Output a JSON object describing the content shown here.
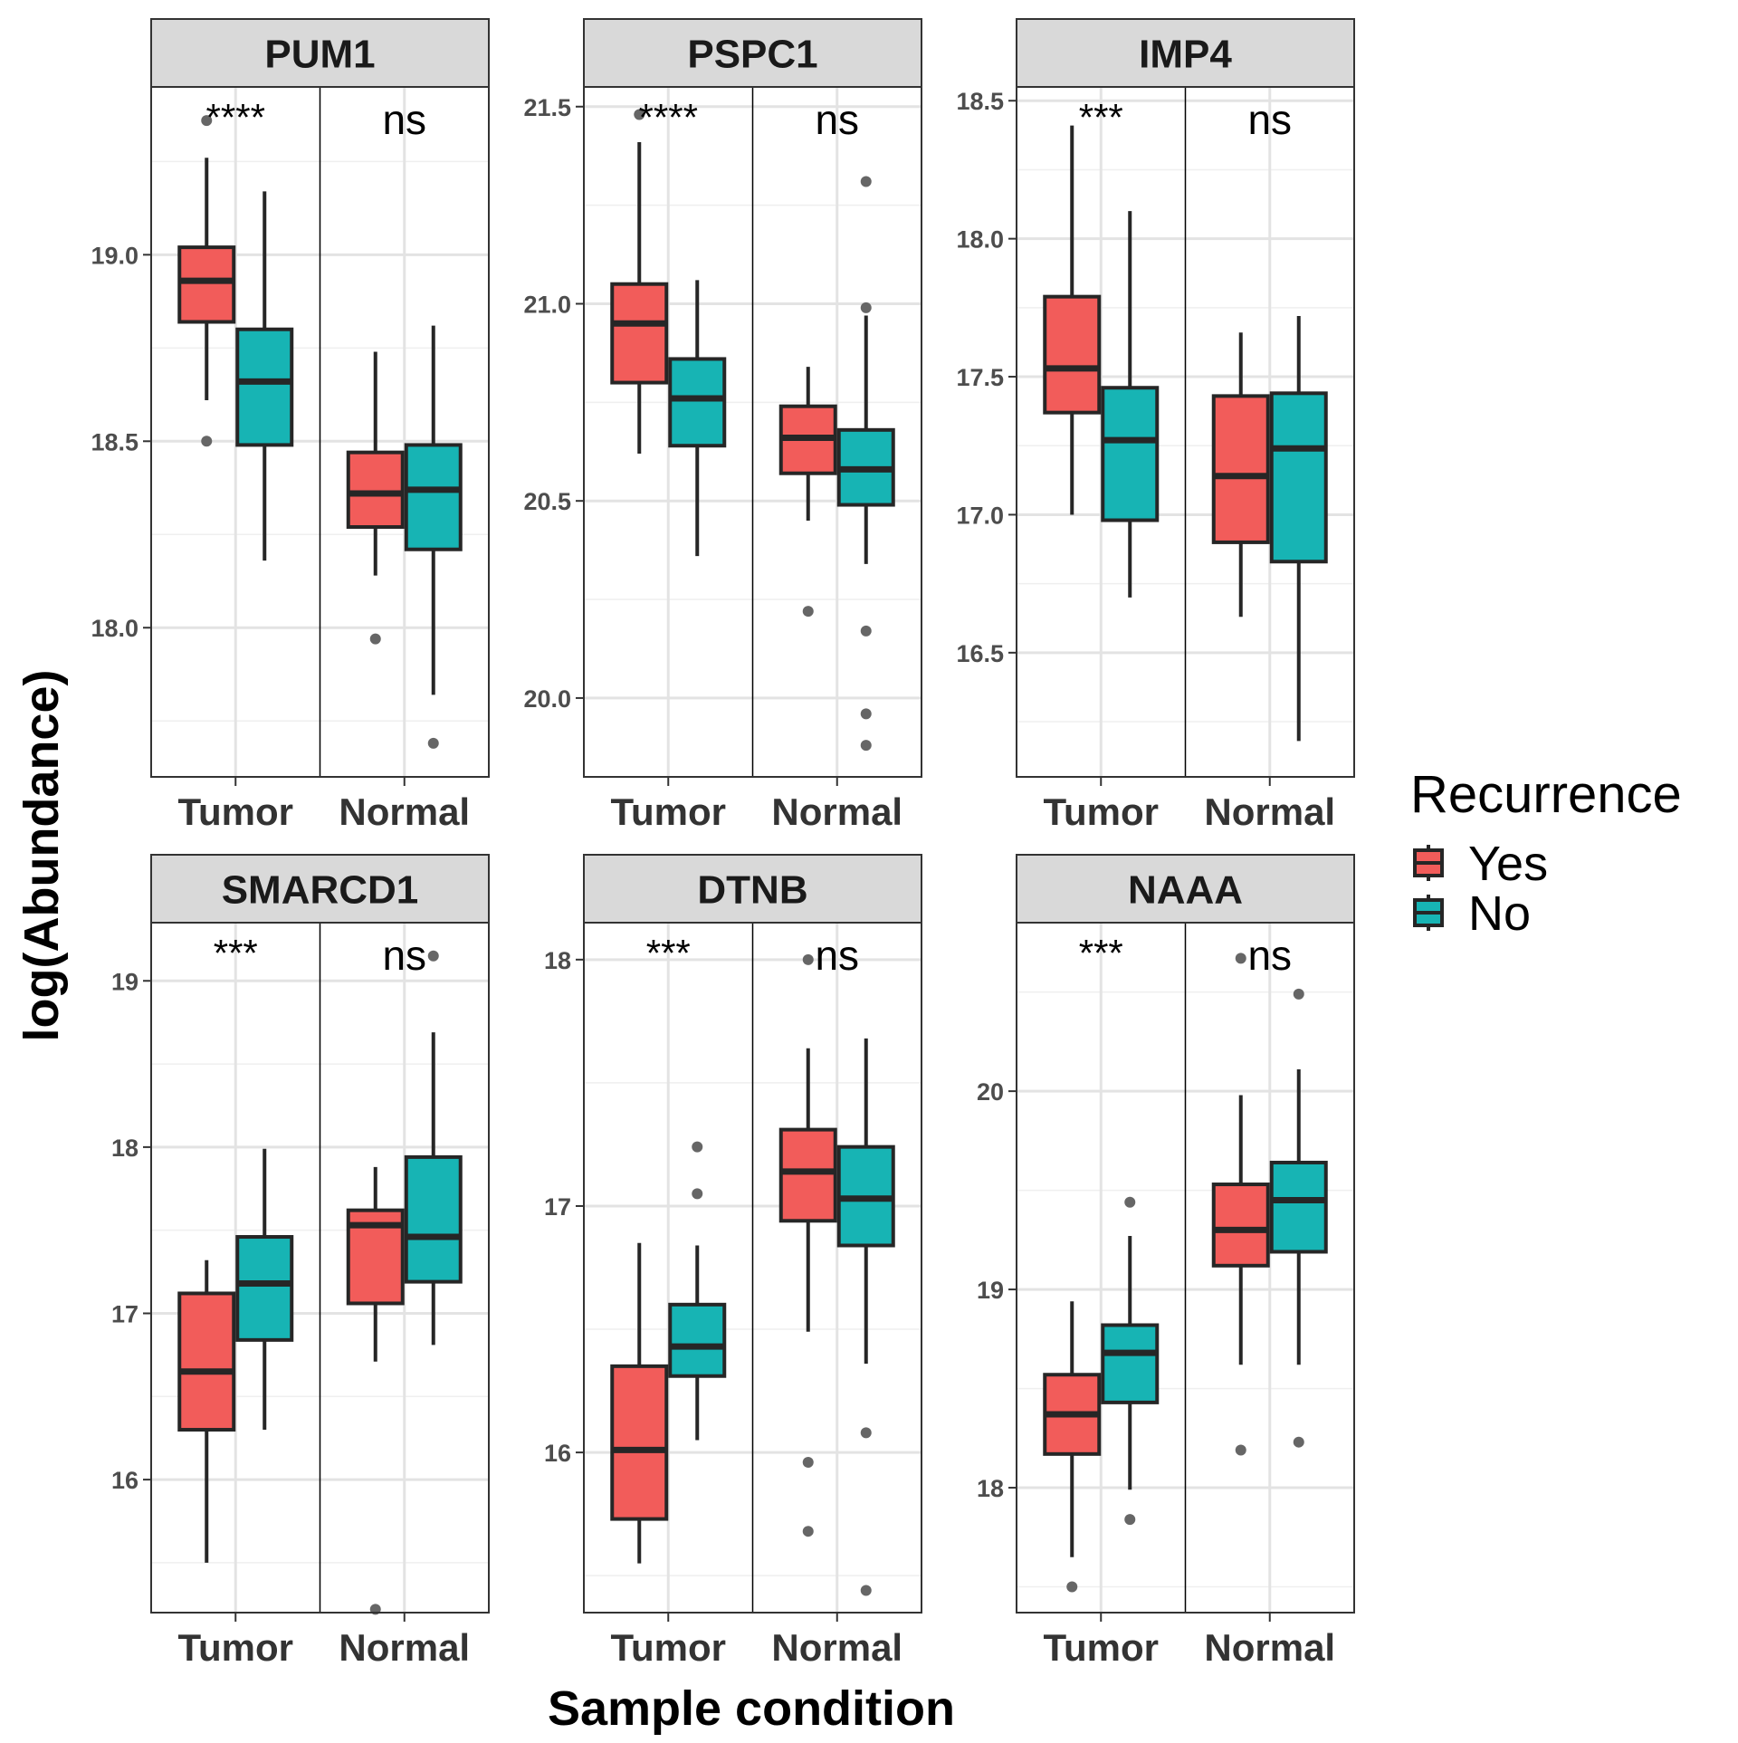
{
  "chart_data": {
    "type": "box",
    "xlabel": "Sample condition",
    "ylabel": "log(Abundance)",
    "categories": [
      "Tumor",
      "Normal"
    ],
    "legend": {
      "title": "Recurrence",
      "position": "right",
      "items": [
        {
          "label": "Yes",
          "color": "#F25C5A"
        },
        {
          "label": "No",
          "color": "#17B4B4"
        }
      ]
    },
    "facets": [
      {
        "title": "PUM1",
        "ylim": [
          17.6,
          19.45
        ],
        "yticks": [
          18.0,
          18.5,
          19.0
        ],
        "ytick_labels": [
          "18.0",
          "18.5",
          "19.0"
        ],
        "yminor": [
          17.75,
          18.25,
          18.75,
          19.25
        ],
        "significance": [
          "****",
          "ns"
        ],
        "boxes": [
          {
            "group": "Tumor",
            "series": "Yes",
            "min": 18.61,
            "q1": 18.82,
            "median": 18.93,
            "q3": 19.02,
            "max": 19.26,
            "outliers": [
              19.36,
              18.5
            ]
          },
          {
            "group": "Tumor",
            "series": "No",
            "min": 18.18,
            "q1": 18.49,
            "median": 18.66,
            "q3": 18.8,
            "max": 19.17,
            "outliers": []
          },
          {
            "group": "Normal",
            "series": "Yes",
            "min": 18.14,
            "q1": 18.27,
            "median": 18.36,
            "q3": 18.47,
            "max": 18.74,
            "outliers": [
              17.97
            ]
          },
          {
            "group": "Normal",
            "series": "No",
            "min": 17.82,
            "q1": 18.21,
            "median": 18.37,
            "q3": 18.49,
            "max": 18.81,
            "outliers": [
              17.69
            ]
          }
        ]
      },
      {
        "title": "PSPC1",
        "ylim": [
          19.8,
          21.55
        ],
        "yticks": [
          20.0,
          20.5,
          21.0,
          21.5
        ],
        "ytick_labels": [
          "20.0",
          "20.5",
          "21.0",
          "21.5"
        ],
        "yminor": [
          20.25,
          20.75,
          21.25
        ],
        "significance": [
          "****",
          "ns"
        ],
        "boxes": [
          {
            "group": "Tumor",
            "series": "Yes",
            "min": 20.62,
            "q1": 20.8,
            "median": 20.95,
            "q3": 21.05,
            "max": 21.41,
            "outliers": [
              21.48
            ]
          },
          {
            "group": "Tumor",
            "series": "No",
            "min": 20.36,
            "q1": 20.64,
            "median": 20.76,
            "q3": 20.86,
            "max": 21.06,
            "outliers": []
          },
          {
            "group": "Normal",
            "series": "Yes",
            "min": 20.45,
            "q1": 20.57,
            "median": 20.66,
            "q3": 20.74,
            "max": 20.84,
            "outliers": [
              20.22
            ]
          },
          {
            "group": "Normal",
            "series": "No",
            "min": 20.34,
            "q1": 20.49,
            "median": 20.58,
            "q3": 20.68,
            "max": 20.97,
            "outliers": [
              21.31,
              20.99,
              20.17,
              19.96,
              19.88
            ]
          }
        ]
      },
      {
        "title": "IMP4",
        "ylim": [
          16.05,
          18.55
        ],
        "yticks": [
          16.5,
          17.0,
          17.5,
          18.0,
          18.5
        ],
        "ytick_labels": [
          "16.5",
          "17.0",
          "17.5",
          "18.0",
          "18.5"
        ],
        "yminor": [
          16.25,
          16.75,
          17.25,
          17.75,
          18.25
        ],
        "significance": [
          "***",
          "ns"
        ],
        "boxes": [
          {
            "group": "Tumor",
            "series": "Yes",
            "min": 17.0,
            "q1": 17.37,
            "median": 17.53,
            "q3": 17.79,
            "max": 18.41,
            "outliers": []
          },
          {
            "group": "Tumor",
            "series": "No",
            "min": 16.7,
            "q1": 16.98,
            "median": 17.27,
            "q3": 17.46,
            "max": 18.1,
            "outliers": []
          },
          {
            "group": "Normal",
            "series": "Yes",
            "min": 16.63,
            "q1": 16.9,
            "median": 17.14,
            "q3": 17.43,
            "max": 17.66,
            "outliers": []
          },
          {
            "group": "Normal",
            "series": "No",
            "min": 16.18,
            "q1": 16.83,
            "median": 17.24,
            "q3": 17.44,
            "max": 17.72,
            "outliers": []
          }
        ]
      },
      {
        "title": "SMARCD1",
        "ylim": [
          15.2,
          19.35
        ],
        "yticks": [
          16,
          17,
          18,
          19
        ],
        "ytick_labels": [
          "16",
          "17",
          "18",
          "19"
        ],
        "yminor": [
          15.5,
          16.5,
          17.5,
          18.5
        ],
        "significance": [
          "***",
          "ns"
        ],
        "boxes": [
          {
            "group": "Tumor",
            "series": "Yes",
            "min": 15.5,
            "q1": 16.3,
            "median": 16.65,
            "q3": 17.12,
            "max": 17.32,
            "outliers": []
          },
          {
            "group": "Tumor",
            "series": "No",
            "min": 16.3,
            "q1": 16.84,
            "median": 17.18,
            "q3": 17.46,
            "max": 17.99,
            "outliers": []
          },
          {
            "group": "Normal",
            "series": "Yes",
            "min": 16.71,
            "q1": 17.06,
            "median": 17.53,
            "q3": 17.62,
            "max": 17.88,
            "outliers": [
              15.22
            ]
          },
          {
            "group": "Normal",
            "series": "No",
            "min": 16.81,
            "q1": 17.19,
            "median": 17.46,
            "q3": 17.94,
            "max": 18.69,
            "outliers": [
              19.15
            ]
          }
        ]
      },
      {
        "title": "DTNB",
        "ylim": [
          15.35,
          18.15
        ],
        "yticks": [
          16,
          17,
          18
        ],
        "ytick_labels": [
          "16",
          "17",
          "18"
        ],
        "yminor": [
          15.5,
          16.5,
          17.5
        ],
        "significance": [
          "***",
          "ns"
        ],
        "boxes": [
          {
            "group": "Tumor",
            "series": "Yes",
            "min": 15.55,
            "q1": 15.73,
            "median": 16.01,
            "q3": 16.35,
            "max": 16.85,
            "outliers": []
          },
          {
            "group": "Tumor",
            "series": "No",
            "min": 16.05,
            "q1": 16.31,
            "median": 16.43,
            "q3": 16.6,
            "max": 16.84,
            "outliers": [
              17.24,
              17.05
            ]
          },
          {
            "group": "Normal",
            "series": "Yes",
            "min": 16.49,
            "q1": 16.94,
            "median": 17.14,
            "q3": 17.31,
            "max": 17.64,
            "outliers": [
              18.0,
              15.96,
              15.68
            ]
          },
          {
            "group": "Normal",
            "series": "No",
            "min": 16.36,
            "q1": 16.84,
            "median": 17.03,
            "q3": 17.24,
            "max": 17.68,
            "outliers": [
              16.08,
              15.44
            ]
          }
        ]
      },
      {
        "title": "NAAA",
        "ylim": [
          17.37,
          20.85
        ],
        "yticks": [
          18,
          19,
          20
        ],
        "ytick_labels": [
          "18",
          "19",
          "20"
        ],
        "yminor": [
          17.5,
          18.5,
          19.5,
          20.5
        ],
        "significance": [
          "***",
          "ns"
        ],
        "boxes": [
          {
            "group": "Tumor",
            "series": "Yes",
            "min": 17.65,
            "q1": 18.17,
            "median": 18.37,
            "q3": 18.57,
            "max": 18.94,
            "outliers": [
              17.5
            ]
          },
          {
            "group": "Tumor",
            "series": "No",
            "min": 17.99,
            "q1": 18.43,
            "median": 18.68,
            "q3": 18.82,
            "max": 19.27,
            "outliers": [
              19.44,
              17.84
            ]
          },
          {
            "group": "Normal",
            "series": "Yes",
            "min": 18.62,
            "q1": 19.12,
            "median": 19.3,
            "q3": 19.53,
            "max": 19.98,
            "outliers": [
              20.67,
              18.19
            ]
          },
          {
            "group": "Normal",
            "series": "No",
            "min": 18.62,
            "q1": 19.19,
            "median": 19.45,
            "q3": 19.64,
            "max": 20.11,
            "outliers": [
              20.49,
              18.23
            ]
          }
        ]
      }
    ]
  }
}
